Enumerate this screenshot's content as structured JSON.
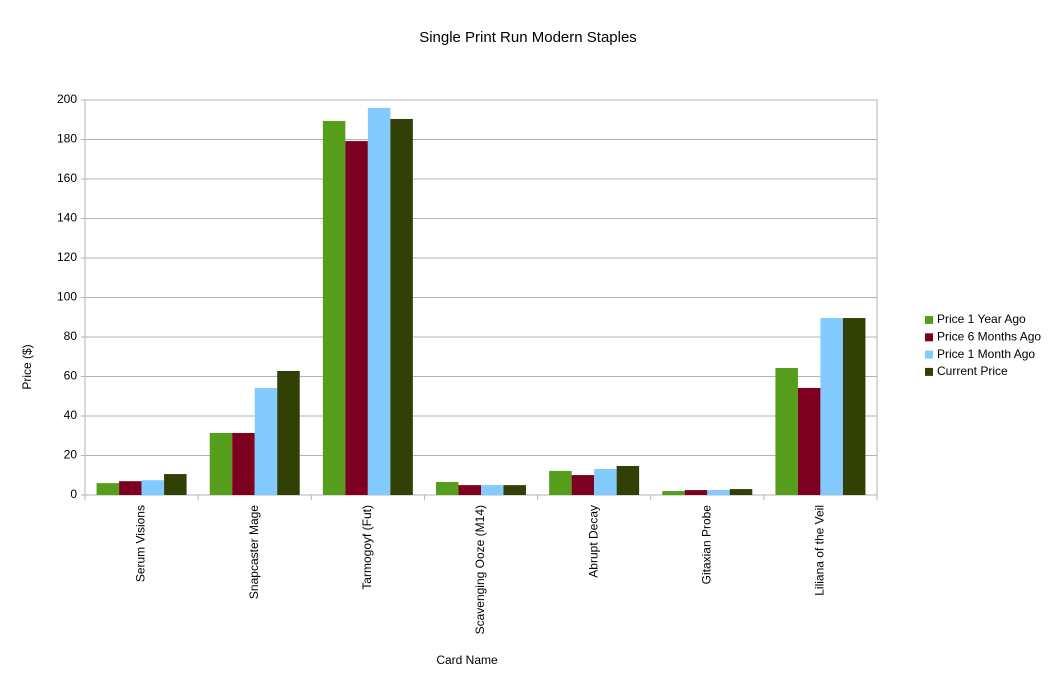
{
  "chart_data": {
    "type": "bar",
    "title": "Single Print Run Modern Staples",
    "x_label": "Card Name",
    "y_label": "Price ($)",
    "categories": [
      "Serum Visions",
      "Snapcaster Mage",
      "Tarmogoyf (Fut)",
      "Scavenging Ooze (M14)",
      "Abrupt Decay",
      "Gitaxian Probe",
      "Liliana of the Veil"
    ],
    "series": [
      {
        "name": "Price 1 Year Ago",
        "color": "#579d1c",
        "values": [
          6,
          31.4,
          189.4,
          6.6,
          12.2,
          2,
          64.3
        ]
      },
      {
        "name": "Price 6 Months Ago",
        "color": "#7e0021",
        "values": [
          7,
          31.4,
          179.2,
          5,
          10.1,
          2.5,
          54.2
        ]
      },
      {
        "name": "Price 1 Month Ago",
        "color": "#83caff",
        "values": [
          7.5,
          54.2,
          196,
          5,
          13.2,
          2.5,
          89.6
        ]
      },
      {
        "name": "Current Price",
        "color": "#314004",
        "values": [
          10.6,
          62.8,
          190.4,
          5,
          14.7,
          3,
          89.6
        ]
      }
    ],
    "ylim": [
      0,
      200
    ],
    "yticks": [
      0,
      20,
      40,
      60,
      80,
      100,
      120,
      140,
      160,
      180,
      200
    ],
    "grid": true,
    "legend": "right"
  }
}
